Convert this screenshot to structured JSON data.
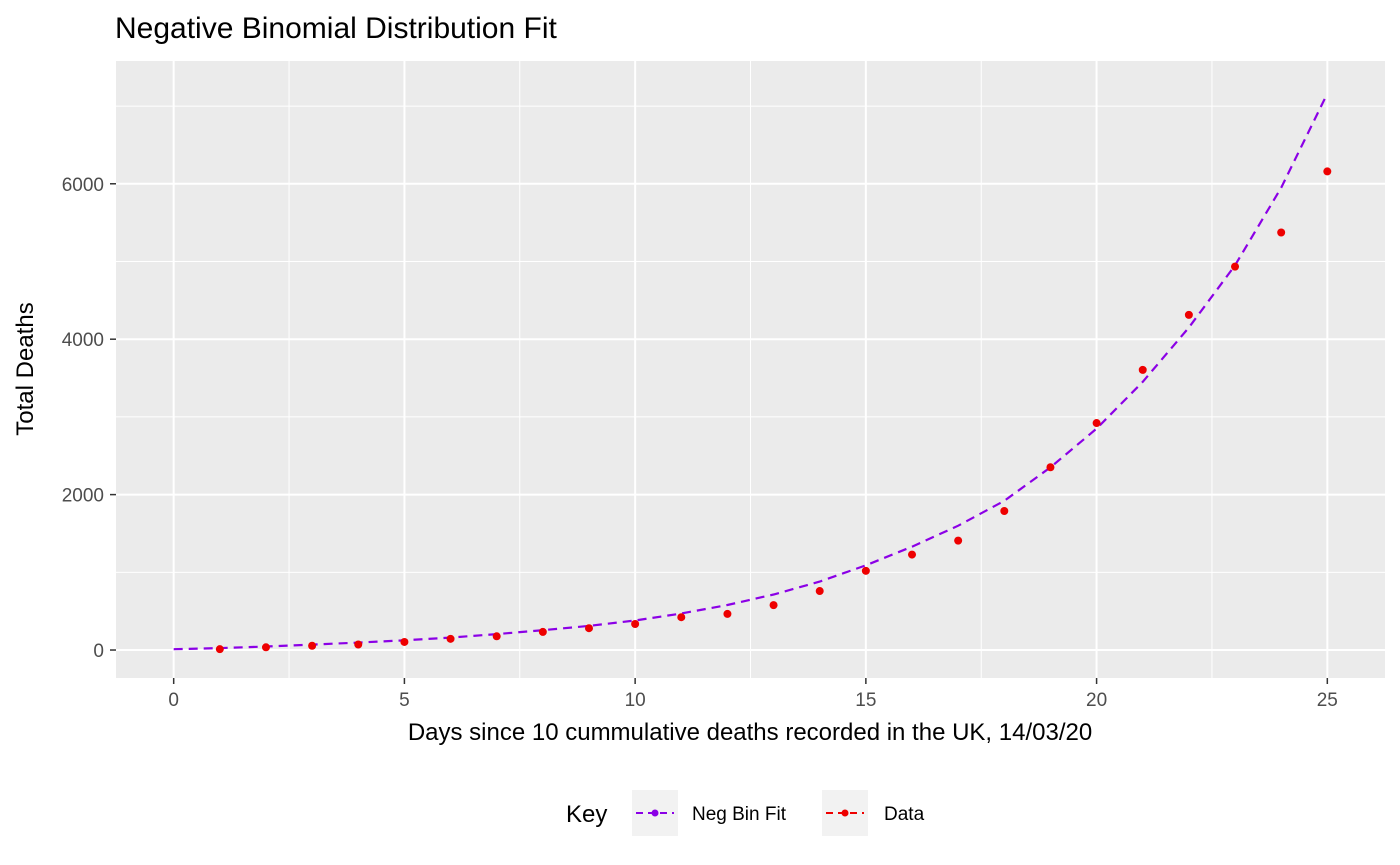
{
  "chart_data": {
    "type": "scatter",
    "title": "Negative Binomial Distribution Fit",
    "xlabel": "Days since 10 cummulative deaths recorded in the UK, 14/03/20",
    "ylabel": "Total Deaths",
    "xlim": [
      -1.25,
      26.25
    ],
    "ylim": [
      -360,
      7580
    ],
    "x_ticks": [
      0,
      5,
      10,
      15,
      20,
      25
    ],
    "y_ticks": [
      0,
      2000,
      4000,
      6000
    ],
    "x_tick_labels": [
      "0",
      "5",
      "10",
      "15",
      "20",
      "25"
    ],
    "y_tick_labels": [
      "0",
      "2000",
      "4000",
      "6000"
    ],
    "grid": true,
    "legend": {
      "title": "Key",
      "position": "bottom",
      "entries": [
        "Neg Bin Fit",
        "Data"
      ]
    },
    "series": [
      {
        "name": "Neg Bin Fit",
        "style": "dashed-line",
        "color": "#8b00e6",
        "x": [
          0,
          1,
          2,
          3,
          4,
          5,
          6,
          7,
          8,
          9,
          10,
          11,
          12,
          13,
          14,
          15,
          16,
          17,
          18,
          19,
          20,
          21,
          22,
          23,
          24,
          25
        ],
        "y": [
          10,
          25,
          45,
          70,
          95,
          125,
          160,
          205,
          255,
          310,
          380,
          470,
          580,
          715,
          880,
          1090,
          1330,
          1600,
          1920,
          2350,
          2850,
          3450,
          4150,
          4950,
          5950,
          7160
        ]
      },
      {
        "name": "Data",
        "style": "points",
        "color": "#ee0000",
        "x": [
          1,
          2,
          3,
          4,
          5,
          6,
          7,
          8,
          9,
          10,
          11,
          12,
          13,
          14,
          15,
          16,
          17,
          18,
          19,
          20,
          21,
          22,
          23,
          24,
          25
        ],
        "y": [
          11,
          35,
          55,
          71,
          104,
          144,
          177,
          233,
          281,
          335,
          422,
          465,
          578,
          759,
          1019,
          1228,
          1408,
          1789,
          2352,
          2921,
          3605,
          4313,
          4934,
          5373,
          6159
        ]
      }
    ]
  }
}
